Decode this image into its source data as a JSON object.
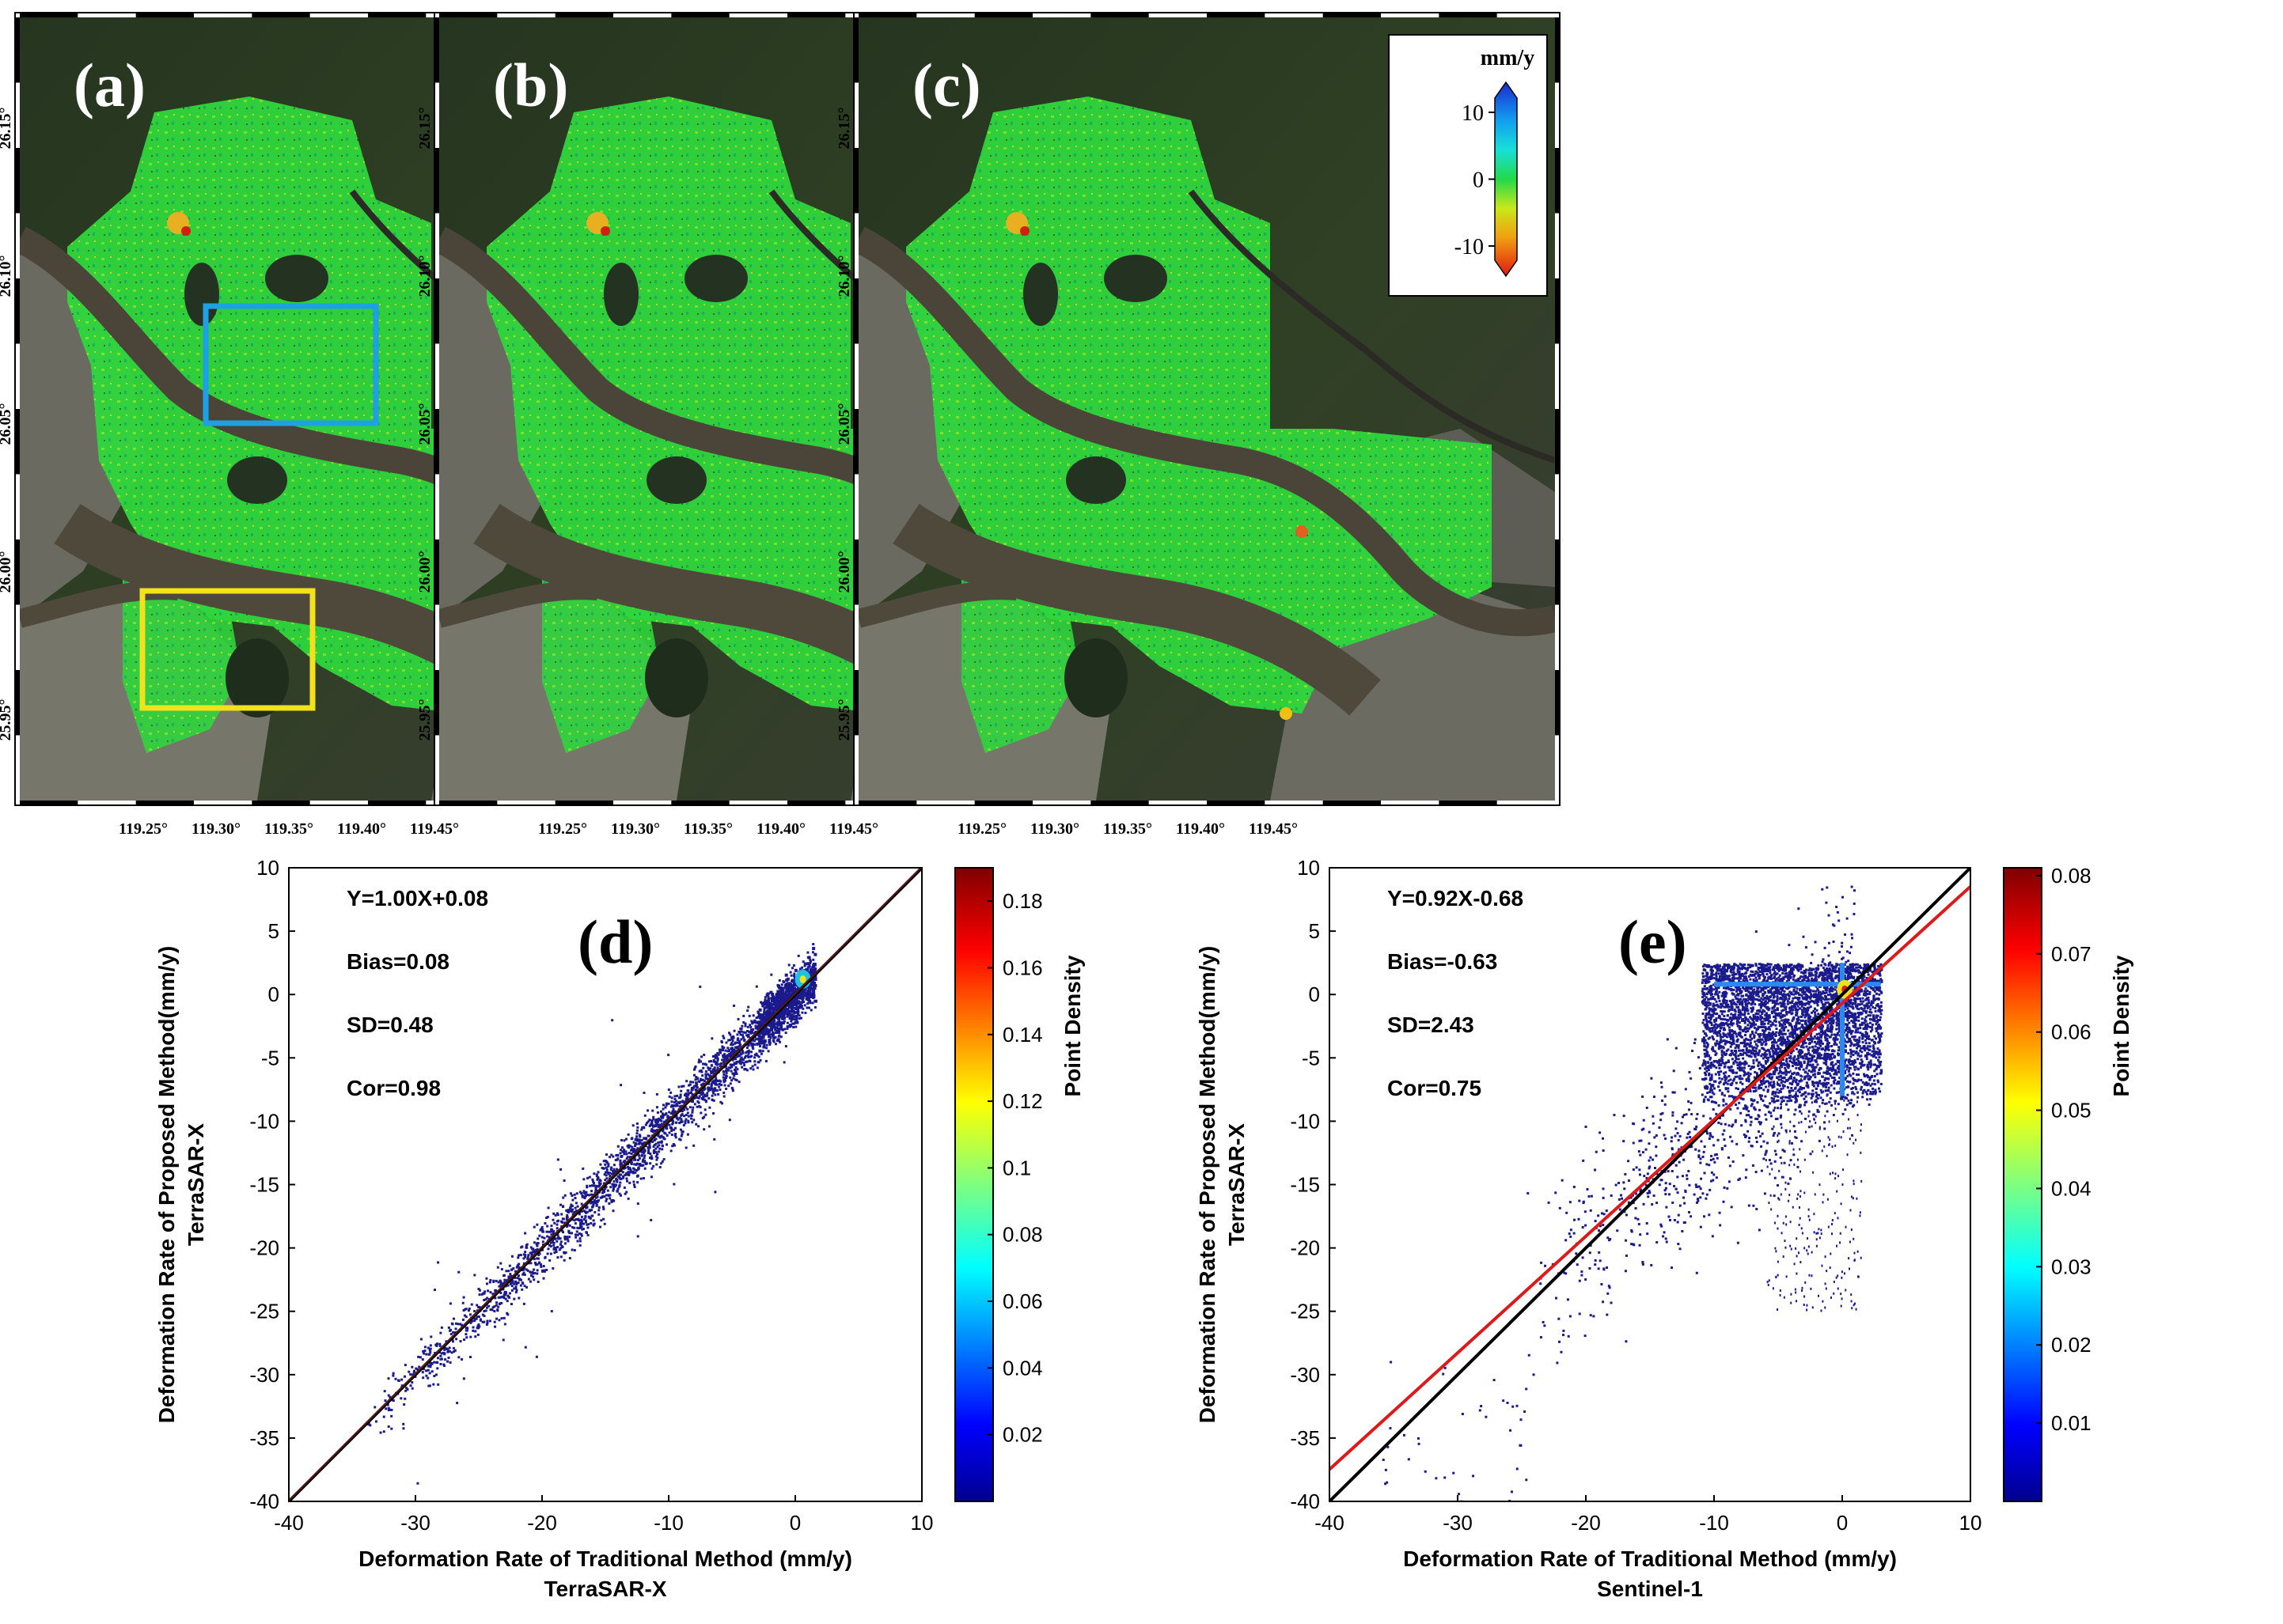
{
  "maps": [
    {
      "panel_label": "(a)",
      "colorbar_unit": "mm/y",
      "colorbar_ticks": [
        "10",
        "0",
        "-10"
      ]
    },
    {
      "panel_label": "(b)",
      "colorbar_unit": "mm/y",
      "colorbar_ticks": [
        "10",
        "0",
        "-10"
      ]
    },
    {
      "panel_label": "(c)",
      "colorbar_unit": "mm/y",
      "colorbar_ticks": [
        "10",
        "0",
        "-10"
      ]
    }
  ],
  "map_axes": {
    "lon_ticks": [
      "119.25°",
      "119.30°",
      "119.35°",
      "119.40°",
      "119.45°"
    ],
    "lat_ticks": [
      "26.15°",
      "26.10°",
      "26.05°",
      "26.00°",
      "25.95°"
    ]
  },
  "colors": {
    "roi_blue": "#1ea0e6",
    "roi_yellow": "#f2e21b",
    "fit_line_red": "#e01818",
    "ref_line_black": "#000000",
    "scatter_dot": "#1a1a8c"
  },
  "chart_data": [
    {
      "type": "scatter",
      "panel_label": "(d)",
      "xlabel": "Deformation Rate of Traditional Method (mm/y)",
      "xlabel_sub": "TerraSAR-X",
      "ylabel": "Deformation Rate of Proposed Method(mm/y)",
      "ylabel_sub": "TerraSAR-X",
      "xlim": [
        -40,
        10
      ],
      "ylim": [
        -40,
        10
      ],
      "xticks": [
        -40,
        -30,
        -20,
        -10,
        0,
        10
      ],
      "yticks": [
        10,
        5,
        0,
        -5,
        -10,
        -15,
        -20,
        -25,
        -30,
        -35,
        -40
      ],
      "stats": [
        "Y=1.00X+0.08",
        "Bias=0.08",
        "SD=0.48",
        "Cor=0.98"
      ],
      "fit": {
        "slope": 1.0,
        "intercept": 0.08
      },
      "colorbar": {
        "label": "Point Density",
        "range": [
          0,
          0.19
        ],
        "ticks": [
          "0.18",
          "0.16",
          "0.14",
          "0.12",
          "0.1",
          "0.08",
          "0.06",
          "0.04",
          "0.02"
        ],
        "tick_values": [
          0.18,
          0.16,
          0.14,
          0.12,
          0.1,
          0.08,
          0.06,
          0.04,
          0.02
        ]
      }
    },
    {
      "type": "scatter",
      "panel_label": "(e)",
      "xlabel": "Deformation Rate of Traditional Method (mm/y)",
      "xlabel_sub": "Sentinel-1",
      "ylabel": "Deformation Rate of Proposed Method(mm/y)",
      "ylabel_sub": "TerraSAR-X",
      "xlim": [
        -40,
        10
      ],
      "ylim": [
        -40,
        10
      ],
      "xticks": [
        -40,
        -30,
        -20,
        -10,
        0,
        10
      ],
      "yticks": [
        10,
        5,
        0,
        -5,
        -10,
        -15,
        -20,
        -25,
        -30,
        -35,
        -40
      ],
      "stats": [
        "Y=0.92X-0.68",
        "Bias=-0.63",
        "SD=2.43",
        "Cor=0.75"
      ],
      "fit": {
        "slope": 0.92,
        "intercept": -0.68
      },
      "colorbar": {
        "label": "Point Density",
        "range": [
          0,
          0.081
        ],
        "ticks": [
          "0.08",
          "0.07",
          "0.06",
          "0.05",
          "0.04",
          "0.03",
          "0.02",
          "0.01"
        ],
        "tick_values": [
          0.08,
          0.07,
          0.06,
          0.05,
          0.04,
          0.03,
          0.02,
          0.01
        ]
      }
    }
  ]
}
